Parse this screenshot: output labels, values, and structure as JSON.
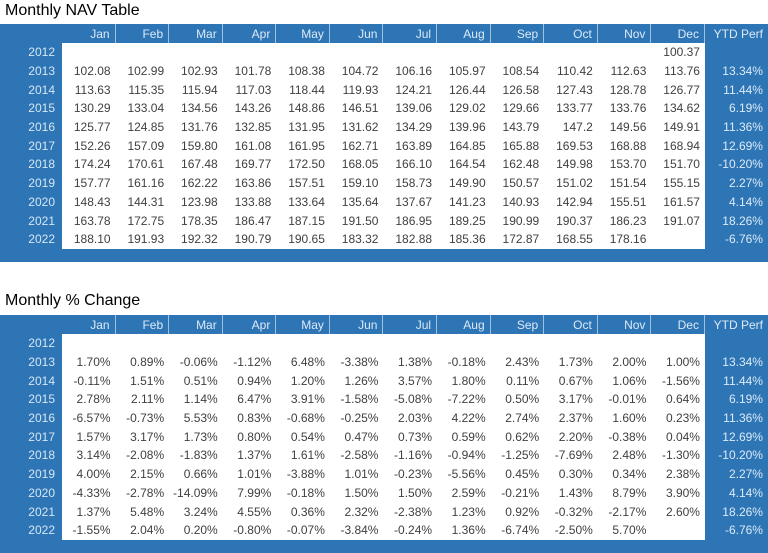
{
  "colors": {
    "table_blue": "#2E75B6",
    "header_text": "#DCEAF7",
    "data_text": "#3F3F3F",
    "title_text": "#000000",
    "data_cell_bg": "#FFFFFF"
  },
  "tables": [
    {
      "title": "Monthly NAV Table",
      "columns": [
        "Jan",
        "Feb",
        "Mar",
        "Apr",
        "May",
        "Jun",
        "Jul",
        "Aug",
        "Sep",
        "Oct",
        "Nov",
        "Dec",
        "YTD Perf"
      ],
      "rows": [
        {
          "year": "2012",
          "values": [
            "",
            "",
            "",
            "",
            "",
            "",
            "",
            "",
            "",
            "",
            "",
            "100.37"
          ],
          "ytd": ""
        },
        {
          "year": "2013",
          "values": [
            "102.08",
            "102.99",
            "102.93",
            "101.78",
            "108.38",
            "104.72",
            "106.16",
            "105.97",
            "108.54",
            "110.42",
            "112.63",
            "113.76"
          ],
          "ytd": "13.34%"
        },
        {
          "year": "2014",
          "values": [
            "113.63",
            "115.35",
            "115.94",
            "117.03",
            "118.44",
            "119.93",
            "124.21",
            "126.44",
            "126.58",
            "127.43",
            "128.78",
            "126.77"
          ],
          "ytd": "11.44%"
        },
        {
          "year": "2015",
          "values": [
            "130.29",
            "133.04",
            "134.56",
            "143.26",
            "148.86",
            "146.51",
            "139.06",
            "129.02",
            "129.66",
            "133.77",
            "133.76",
            "134.62"
          ],
          "ytd": "6.19%"
        },
        {
          "year": "2016",
          "values": [
            "125.77",
            "124.85",
            "131.76",
            "132.85",
            "131.95",
            "131.62",
            "134.29",
            "139.96",
            "143.79",
            "147.2",
            "149.56",
            "149.91"
          ],
          "ytd": "11.36%"
        },
        {
          "year": "2017",
          "values": [
            "152.26",
            "157.09",
            "159.80",
            "161.08",
            "161.95",
            "162.71",
            "163.89",
            "164.85",
            "165.88",
            "169.53",
            "168.88",
            "168.94"
          ],
          "ytd": "12.69%"
        },
        {
          "year": "2018",
          "values": [
            "174.24",
            "170.61",
            "167.48",
            "169.77",
            "172.50",
            "168.05",
            "166.10",
            "164.54",
            "162.48",
            "149.98",
            "153.70",
            "151.70"
          ],
          "ytd": "-10.20%"
        },
        {
          "year": "2019",
          "values": [
            "157.77",
            "161.16",
            "162.22",
            "163.86",
            "157.51",
            "159.10",
            "158.73",
            "149.90",
            "150.57",
            "151.02",
            "151.54",
            "155.15"
          ],
          "ytd": "2.27%"
        },
        {
          "year": "2020",
          "values": [
            "148.43",
            "144.31",
            "123.98",
            "133.88",
            "133.64",
            "135.64",
            "137.67",
            "141.23",
            "140.93",
            "142.94",
            "155.51",
            "161.57"
          ],
          "ytd": "4.14%"
        },
        {
          "year": "2021",
          "values": [
            "163.78",
            "172.75",
            "178.35",
            "186.47",
            "187.15",
            "191.50",
            "186.95",
            "189.25",
            "190.99",
            "190.37",
            "186.23",
            "191.07"
          ],
          "ytd": "18.26%"
        },
        {
          "year": "2022",
          "values": [
            "188.10",
            "191.93",
            "192.32",
            "190.79",
            "190.65",
            "183.32",
            "182.88",
            "185.36",
            "172.87",
            "168.55",
            "178.16",
            ""
          ],
          "ytd": "-6.76%"
        }
      ]
    },
    {
      "title": "Monthly % Change",
      "columns": [
        "Jan",
        "Feb",
        "Mar",
        "Apr",
        "May",
        "Jun",
        "Jul",
        "Aug",
        "Sep",
        "Oct",
        "Nov",
        "Dec",
        "YTD Perf"
      ],
      "rows": [
        {
          "year": "2012",
          "values": [
            "",
            "",
            "",
            "",
            "",
            "",
            "",
            "",
            "",
            "",
            "",
            ""
          ],
          "ytd": ""
        },
        {
          "year": "2013",
          "values": [
            "1.70%",
            "0.89%",
            "-0.06%",
            "-1.12%",
            "6.48%",
            "-3.38%",
            "1.38%",
            "-0.18%",
            "2.43%",
            "1.73%",
            "2.00%",
            "1.00%"
          ],
          "ytd": "13.34%"
        },
        {
          "year": "2014",
          "values": [
            "-0.11%",
            "1.51%",
            "0.51%",
            "0.94%",
            "1.20%",
            "1.26%",
            "3.57%",
            "1.80%",
            "0.11%",
            "0.67%",
            "1.06%",
            "-1.56%"
          ],
          "ytd": "11.44%"
        },
        {
          "year": "2015",
          "values": [
            "2.78%",
            "2.11%",
            "1.14%",
            "6.47%",
            "3.91%",
            "-1.58%",
            "-5.08%",
            "-7.22%",
            "0.50%",
            "3.17%",
            "-0.01%",
            "0.64%"
          ],
          "ytd": "6.19%"
        },
        {
          "year": "2016",
          "values": [
            "-6.57%",
            "-0.73%",
            "5.53%",
            "0.83%",
            "-0.68%",
            "-0.25%",
            "2.03%",
            "4.22%",
            "2.74%",
            "2.37%",
            "1.60%",
            "0.23%"
          ],
          "ytd": "11.36%"
        },
        {
          "year": "2017",
          "values": [
            "1.57%",
            "3.17%",
            "1.73%",
            "0.80%",
            "0.54%",
            "0.47%",
            "0.73%",
            "0.59%",
            "0.62%",
            "2.20%",
            "-0.38%",
            "0.04%"
          ],
          "ytd": "12.69%"
        },
        {
          "year": "2018",
          "values": [
            "3.14%",
            "-2.08%",
            "-1.83%",
            "1.37%",
            "1.61%",
            "-2.58%",
            "-1.16%",
            "-0.94%",
            "-1.25%",
            "-7.69%",
            "2.48%",
            "-1.30%"
          ],
          "ytd": "-10.20%"
        },
        {
          "year": "2019",
          "values": [
            "4.00%",
            "2.15%",
            "0.66%",
            "1.01%",
            "-3.88%",
            "1.01%",
            "-0.23%",
            "-5.56%",
            "0.45%",
            "0.30%",
            "0.34%",
            "2.38%"
          ],
          "ytd": "2.27%"
        },
        {
          "year": "2020",
          "values": [
            "-4.33%",
            "-2.78%",
            "-14.09%",
            "7.99%",
            "-0.18%",
            "1.50%",
            "1.50%",
            "2.59%",
            "-0.21%",
            "1.43%",
            "8.79%",
            "3.90%"
          ],
          "ytd": "4.14%"
        },
        {
          "year": "2021",
          "values": [
            "1.37%",
            "5.48%",
            "3.24%",
            "4.55%",
            "0.36%",
            "2.32%",
            "-2.38%",
            "1.23%",
            "0.92%",
            "-0.32%",
            "-2.17%",
            "2.60%"
          ],
          "ytd": "18.26%"
        },
        {
          "year": "2022",
          "values": [
            "-1.55%",
            "2.04%",
            "0.20%",
            "-0.80%",
            "-0.07%",
            "-3.84%",
            "-0.24%",
            "1.36%",
            "-6.74%",
            "-2.50%",
            "5.70%",
            ""
          ],
          "ytd": "-6.76%"
        }
      ]
    }
  ]
}
